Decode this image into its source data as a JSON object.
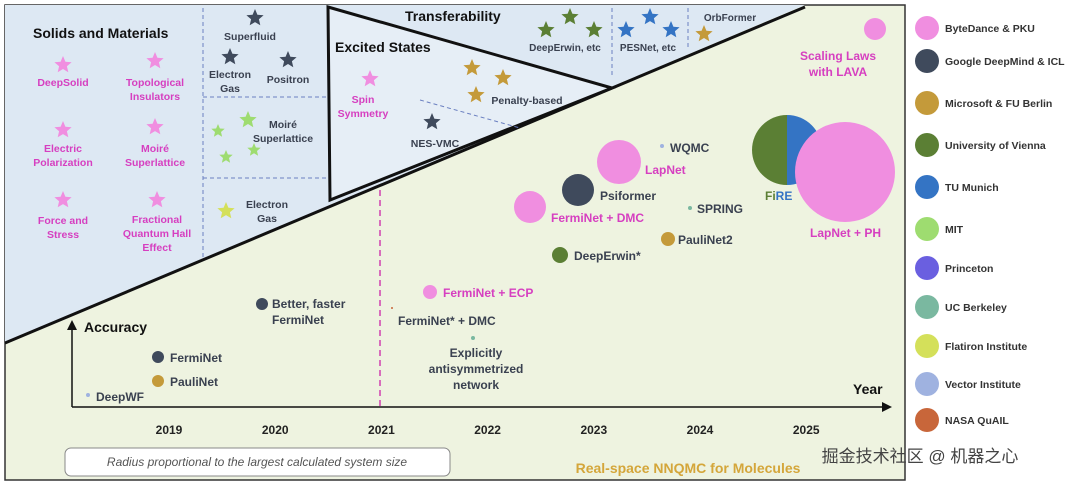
{
  "legend": [
    {
      "label": "ByteDance & PKU",
      "color": "#f08ee0"
    },
    {
      "label": "Google DeepMind & ICL",
      "color": "#3f4a5c"
    },
    {
      "label": "Microsoft & FU Berlin",
      "color": "#c49a3a"
    },
    {
      "label": "University of Vienna",
      "color": "#5b7f34"
    },
    {
      "label": "TU Munich",
      "color": "#3474c4"
    },
    {
      "label": "MIT",
      "color": "#9edc70"
    },
    {
      "label": "Princeton",
      "color": "#6a5fe0"
    },
    {
      "label": "UC Berkeley",
      "color": "#7ab8a0"
    },
    {
      "label": "Flatiron Institute",
      "color": "#d4e05a"
    },
    {
      "label": "Vector Institute",
      "color": "#9fb2e0"
    },
    {
      "label": "NASA QuAIL",
      "color": "#c8663a"
    }
  ],
  "solids": {
    "title": "Solids and Materials",
    "items": [
      {
        "label": [
          "DeepSolid"
        ]
      },
      {
        "label": [
          "Topological",
          "Insulators"
        ]
      },
      {
        "label": [
          "Electric",
          "Polarization"
        ]
      },
      {
        "label": [
          "Moiré",
          "Superlattice"
        ]
      },
      {
        "label": [
          "Force and",
          "Stress"
        ]
      },
      {
        "label": [
          "Fractional",
          "Quantum Hall",
          "Effect"
        ]
      },
      {
        "label": [
          "Superfluid"
        ]
      },
      {
        "label": [
          "Electron",
          "Gas"
        ]
      },
      {
        "label": [
          "Positron"
        ]
      },
      {
        "label": [
          "Moiré",
          "Superlattice"
        ]
      },
      {
        "label": [
          "Electron",
          "Gas"
        ]
      }
    ]
  },
  "excited": {
    "title": "Excited States",
    "items": [
      {
        "label": [
          "Spin",
          "Symmetry"
        ]
      },
      {
        "label": [
          "NES-VMC"
        ]
      },
      {
        "label": [
          "Penalty-based"
        ]
      }
    ]
  },
  "transfer": {
    "title": "Transferability",
    "items": [
      {
        "label": [
          "DeepErwin, etc"
        ]
      },
      {
        "label": [
          "PESNet, etc"
        ]
      },
      {
        "label": [
          "OrbFormer"
        ]
      }
    ]
  },
  "axis": {
    "y_label": "Accuracy",
    "x_label": "Year",
    "years": [
      "2019",
      "2020",
      "2021",
      "2022",
      "2023",
      "2024",
      "2025"
    ]
  },
  "nodes": [
    {
      "label": [
        "DeepWF"
      ]
    },
    {
      "label": [
        "FermiNet"
      ]
    },
    {
      "label": [
        "PauliNet"
      ]
    },
    {
      "label": [
        "Better, faster",
        "FermiNet"
      ]
    },
    {
      "label": [
        "FermiNet + ECP"
      ]
    },
    {
      "label": [
        "FermiNet* + DMC"
      ]
    },
    {
      "label": [
        "Explicitly",
        "antisymmetrized",
        "network"
      ]
    },
    {
      "label": [
        "DeepErwin*"
      ]
    },
    {
      "label": [
        "FermiNet + DMC"
      ]
    },
    {
      "label": [
        "Psiformer"
      ]
    },
    {
      "label": [
        "LapNet"
      ]
    },
    {
      "label": [
        "WQMC"
      ]
    },
    {
      "label": [
        "SPRING"
      ]
    },
    {
      "label": [
        "PauliNet2"
      ]
    },
    {
      "label": [
        "Fi",
        "RE"
      ]
    },
    {
      "label": [
        "LapNet + PH"
      ]
    },
    {
      "label": [
        "Scaling Laws",
        "with LAVA"
      ]
    }
  ],
  "caption": "Radius proportional to the largest calculated system size",
  "footer": "Real-space NNQMC for Molecules",
  "watermark": "掘金技术社区 @ 机器之心"
}
